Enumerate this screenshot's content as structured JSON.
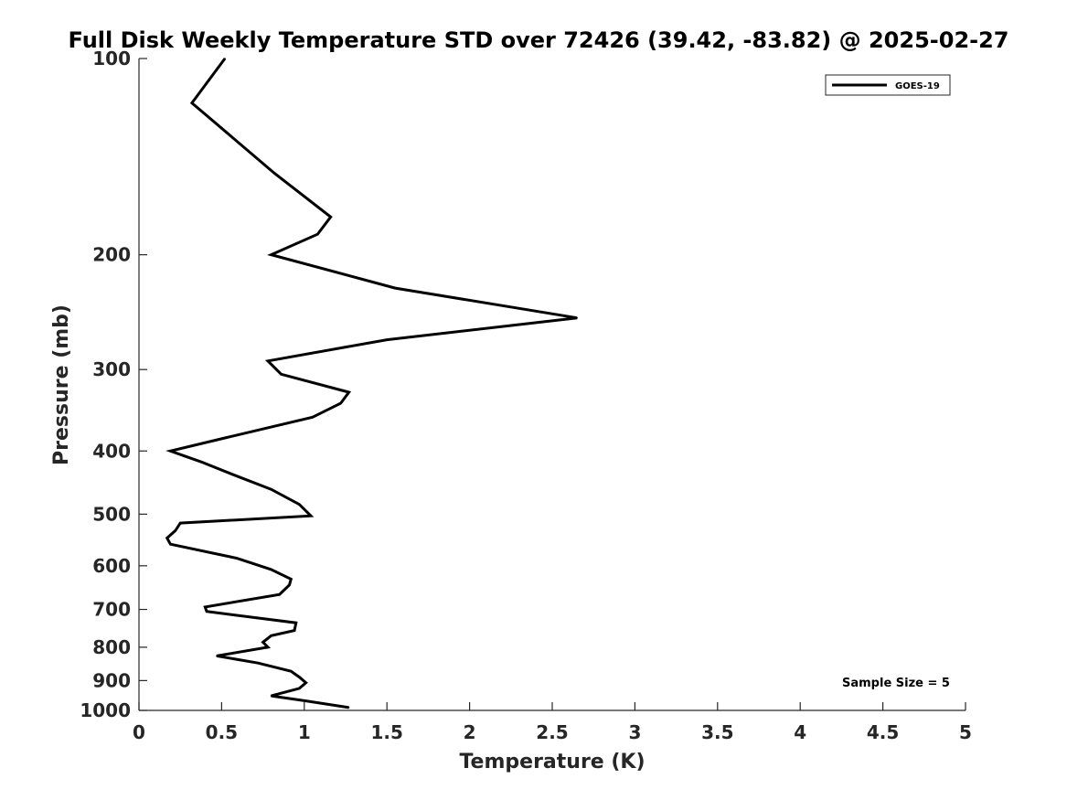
{
  "chart_data": {
    "type": "line",
    "title": "Full Disk Weekly Temperature STD over 72426 (39.42, -83.82) @ 2025-02-27",
    "xlabel": "Temperature (K)",
    "ylabel": "Pressure (mb)",
    "xlim": [
      0,
      5
    ],
    "ylim": [
      1000,
      100
    ],
    "yscale": "log",
    "y_reversed": true,
    "grid": false,
    "legend_position": "top-right",
    "xticks": [
      0,
      0.5,
      1,
      1.5,
      2,
      2.5,
      3,
      3.5,
      4,
      4.5,
      5
    ],
    "xtick_labels": [
      "0",
      "0.5",
      "1",
      "1.5",
      "2",
      "2.5",
      "3",
      "3.5",
      "4",
      "4.5",
      "5"
    ],
    "yticks": [
      100,
      200,
      300,
      400,
      500,
      600,
      700,
      800,
      900,
      1000
    ],
    "ytick_labels": [
      "100",
      "200",
      "300",
      "400",
      "500",
      "600",
      "700",
      "800",
      "900",
      "1000"
    ],
    "series": [
      {
        "name": "GOES-19",
        "color": "#000000",
        "x": [
          0.52,
          0.32,
          0.82,
          1.16,
          1.08,
          0.8,
          1.55,
          2.65,
          1.5,
          0.78,
          0.86,
          1.27,
          1.22,
          1.05,
          0.52,
          0.19,
          0.38,
          0.57,
          0.8,
          0.97,
          1.04,
          0.25,
          0.22,
          0.17,
          0.19,
          0.59,
          0.8,
          0.92,
          0.91,
          0.85,
          0.4,
          0.41,
          0.95,
          0.94,
          0.8,
          0.75,
          0.78,
          0.47,
          0.72,
          0.92,
          0.97,
          1.01,
          0.97,
          0.8,
          1.01,
          1.27
        ],
        "y": [
          100,
          117,
          150,
          175,
          186,
          200,
          225,
          250,
          270,
          291,
          305,
          325,
          338,
          355,
          382,
          400,
          416,
          435,
          458,
          483,
          503,
          516,
          530,
          544,
          556,
          584,
          608,
          629,
          642,
          664,
          694,
          705,
          734,
          754,
          768,
          786,
          800,
          825,
          846,
          871,
          889,
          907,
          925,
          950,
          967,
          990
        ]
      }
    ],
    "annotation": "Sample Size = 5"
  }
}
